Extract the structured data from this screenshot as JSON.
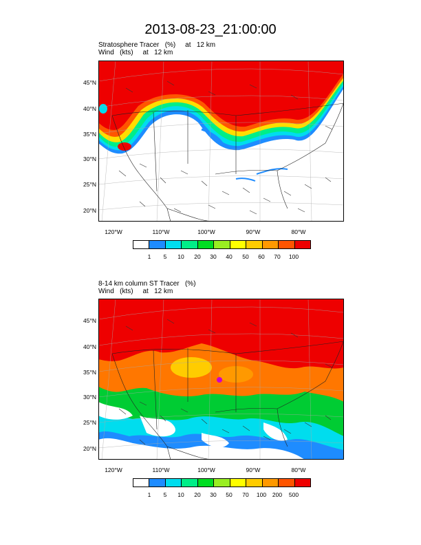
{
  "title": "2013-08-23_21:00:00",
  "panels": [
    {
      "title_line1": "Stratosphere Tracer   (%)     at   12 km",
      "title_line2": "Wind   (kts)     at   12 km",
      "lat_labels": [
        "45°N",
        "40°N",
        "35°N",
        "30°N",
        "25°N",
        "20°N"
      ],
      "lon_labels": [
        "120°W",
        "110°W",
        "100°W",
        "90°W",
        "80°W"
      ],
      "colorbar_labels": [
        "1",
        "5",
        "10",
        "20",
        "30",
        "40",
        "50",
        "60",
        "70",
        "100"
      ]
    },
    {
      "title_line1": "8-14 km column ST Tracer   (%)",
      "title_line2": "Wind   (kts)     at   12 km",
      "lat_labels": [
        "45°N",
        "40°N",
        "35°N",
        "30°N",
        "25°N",
        "20°N"
      ],
      "lon_labels": [
        "120°W",
        "110°W",
        "100°W",
        "90°W",
        "80°W"
      ],
      "colorbar_labels": [
        "1",
        "5",
        "10",
        "20",
        "30",
        "50",
        "70",
        "100",
        "200",
        "500"
      ]
    }
  ],
  "colorbar_colors": [
    "#ffffff",
    "#1e8cff",
    "#00ddee",
    "#00ee88",
    "#00dd22",
    "#99ee22",
    "#ffff00",
    "#ffcc00",
    "#ff9900",
    "#ff5500",
    "#ee0000"
  ]
}
